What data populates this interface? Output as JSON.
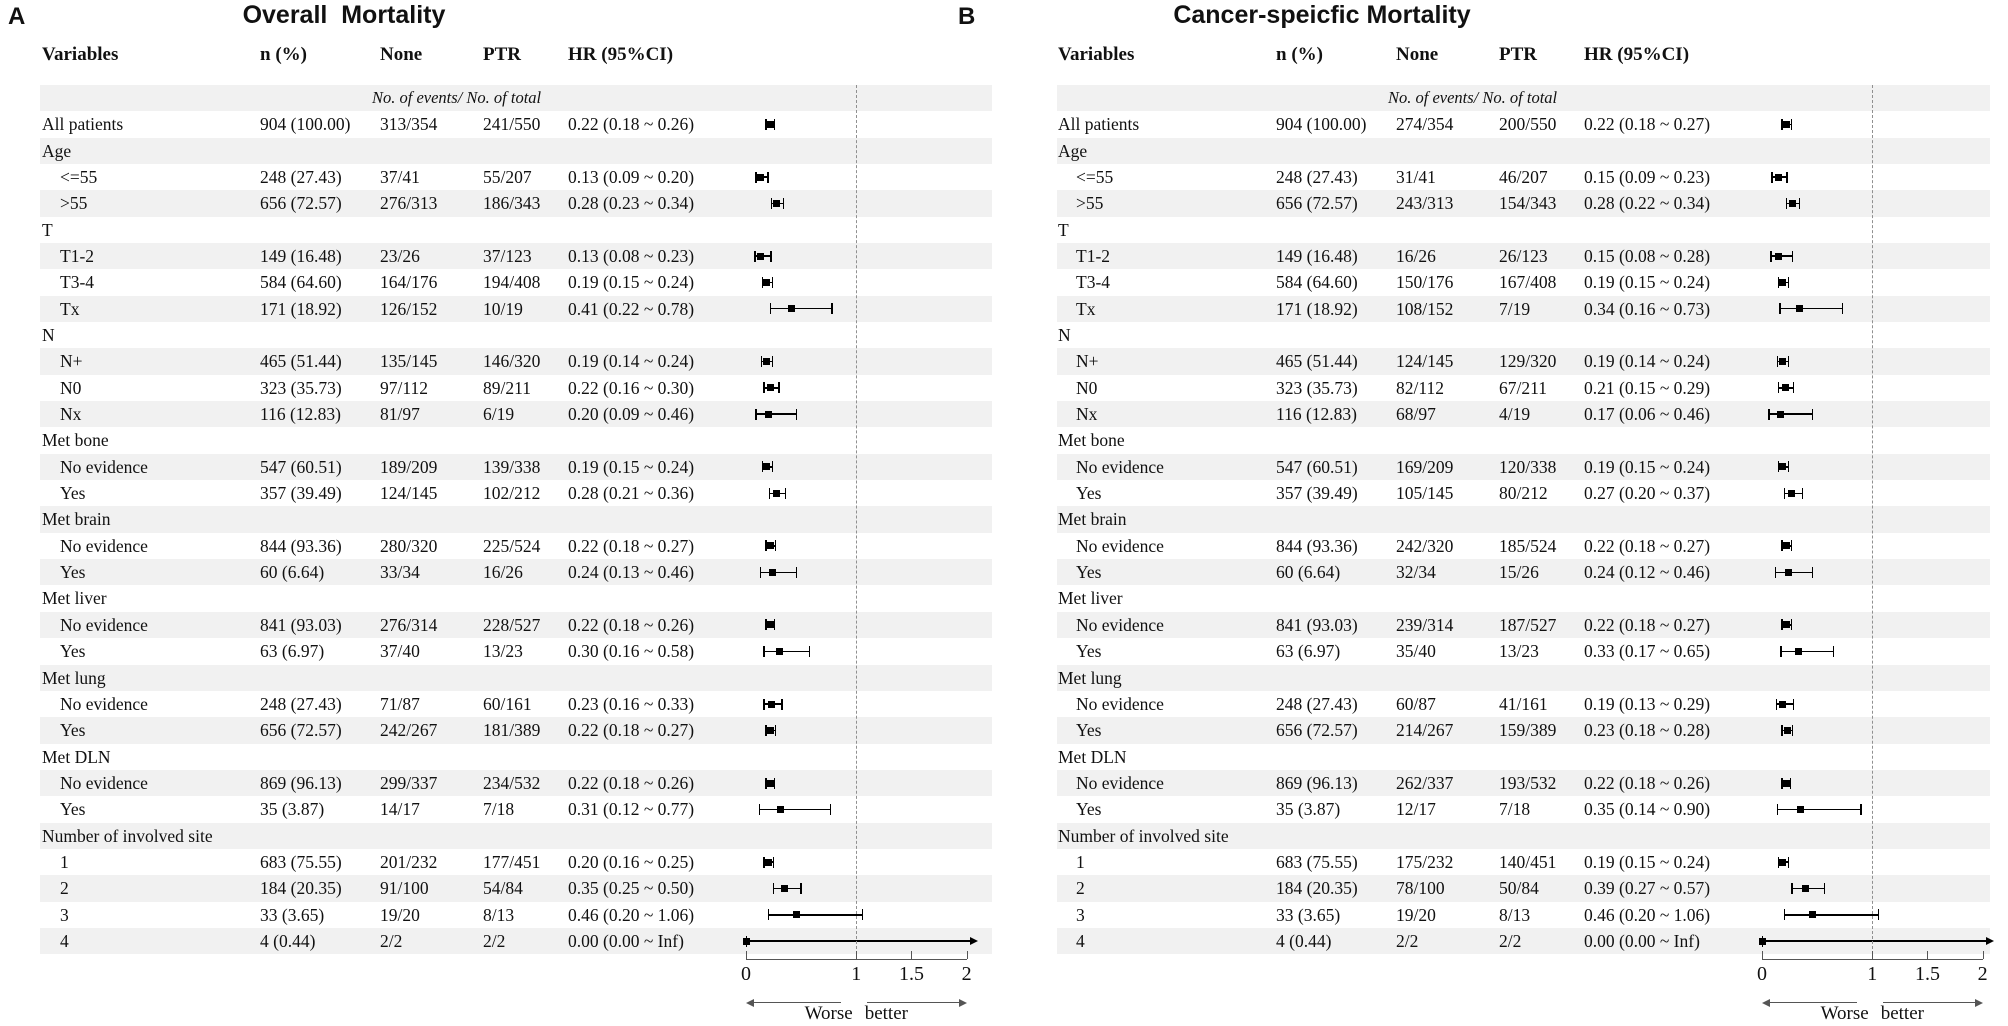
{
  "colors": {
    "band": "#f1f1f1",
    "marker": "#000000",
    "axis": "#555555",
    "refline": "#909090",
    "text": "#111111"
  },
  "chart_data": [
    {
      "type": "forest",
      "panel_label": "A",
      "title": "Overall  Mortality",
      "columns": {
        "variables": "Variables",
        "n": "n (%)",
        "none": "None",
        "ptr": "PTR",
        "hr": "HR (95%CI)"
      },
      "subheader": "No. of events/ No. of total",
      "axis": {
        "ticks": [
          0,
          1,
          1.5,
          2
        ],
        "tick_labels": [
          "0",
          "1",
          "1.5",
          "2"
        ],
        "xlim": [
          0,
          2
        ],
        "refline": 1,
        "left_label": "Worse",
        "right_label": "better"
      },
      "rows": [
        {
          "label": "All patients",
          "indent": false,
          "n": "904 (100.00)",
          "none": "313/354",
          "ptr": "241/550",
          "hr_text": "0.22 (0.18 ~ 0.26)",
          "hr": 0.22,
          "lo": 0.18,
          "hi": 0.26
        },
        {
          "label": "Age",
          "group": true
        },
        {
          "label": "<=55",
          "indent": true,
          "n": "248 (27.43)",
          "none": "37/41",
          "ptr": "55/207",
          "hr_text": "0.13 (0.09 ~ 0.20)",
          "hr": 0.13,
          "lo": 0.09,
          "hi": 0.2
        },
        {
          "label": ">55",
          "indent": true,
          "n": "656 (72.57)",
          "none": "276/313",
          "ptr": "186/343",
          "hr_text": "0.28 (0.23 ~ 0.34)",
          "hr": 0.28,
          "lo": 0.23,
          "hi": 0.34
        },
        {
          "label": "T",
          "group": true
        },
        {
          "label": "T1-2",
          "indent": true,
          "n": "149 (16.48)",
          "none": "23/26",
          "ptr": "37/123",
          "hr_text": "0.13 (0.08 ~ 0.23)",
          "hr": 0.13,
          "lo": 0.08,
          "hi": 0.23
        },
        {
          "label": "T3-4",
          "indent": true,
          "n": "584 (64.60)",
          "none": "164/176",
          "ptr": "194/408",
          "hr_text": "0.19 (0.15 ~ 0.24)",
          "hr": 0.19,
          "lo": 0.15,
          "hi": 0.24
        },
        {
          "label": "Tx",
          "indent": true,
          "n": "171 (18.92)",
          "none": "126/152",
          "ptr": "10/19",
          "hr_text": "0.41 (0.22 ~ 0.78)",
          "hr": 0.41,
          "lo": 0.22,
          "hi": 0.78
        },
        {
          "label": "N",
          "group": true
        },
        {
          "label": "N+",
          "indent": true,
          "n": "465 (51.44)",
          "none": "135/145",
          "ptr": "146/320",
          "hr_text": "0.19 (0.14 ~ 0.24)",
          "hr": 0.19,
          "lo": 0.14,
          "hi": 0.24
        },
        {
          "label": "N0",
          "indent": true,
          "n": "323 (35.73)",
          "none": "97/112",
          "ptr": "89/211",
          "hr_text": "0.22 (0.16 ~ 0.30)",
          "hr": 0.22,
          "lo": 0.16,
          "hi": 0.3
        },
        {
          "label": "Nx",
          "indent": true,
          "n": "116 (12.83)",
          "none": "81/97",
          "ptr": "6/19",
          "hr_text": "0.20 (0.09 ~ 0.46)",
          "hr": 0.2,
          "lo": 0.09,
          "hi": 0.46
        },
        {
          "label": "Met bone",
          "group": true
        },
        {
          "label": "No evidence",
          "indent": true,
          "n": "547 (60.51)",
          "none": "189/209",
          "ptr": "139/338",
          "hr_text": "0.19 (0.15 ~ 0.24)",
          "hr": 0.19,
          "lo": 0.15,
          "hi": 0.24
        },
        {
          "label": "Yes",
          "indent": true,
          "n": "357 (39.49)",
          "none": "124/145",
          "ptr": "102/212",
          "hr_text": "0.28 (0.21 ~ 0.36)",
          "hr": 0.28,
          "lo": 0.21,
          "hi": 0.36
        },
        {
          "label": "Met brain",
          "group": true
        },
        {
          "label": "No evidence",
          "indent": true,
          "n": "844 (93.36)",
          "none": "280/320",
          "ptr": "225/524",
          "hr_text": "0.22 (0.18 ~ 0.27)",
          "hr": 0.22,
          "lo": 0.18,
          "hi": 0.27
        },
        {
          "label": "Yes",
          "indent": true,
          "n": "60 (6.64)",
          "none": "33/34",
          "ptr": "16/26",
          "hr_text": "0.24 (0.13 ~ 0.46)",
          "hr": 0.24,
          "lo": 0.13,
          "hi": 0.46
        },
        {
          "label": "Met liver",
          "group": true
        },
        {
          "label": "No evidence",
          "indent": true,
          "n": "841 (93.03)",
          "none": "276/314",
          "ptr": "228/527",
          "hr_text": "0.22 (0.18 ~ 0.26)",
          "hr": 0.22,
          "lo": 0.18,
          "hi": 0.26
        },
        {
          "label": "Yes",
          "indent": true,
          "n": "63 (6.97)",
          "none": "37/40",
          "ptr": "13/23",
          "hr_text": "0.30 (0.16 ~ 0.58)",
          "hr": 0.3,
          "lo": 0.16,
          "hi": 0.58
        },
        {
          "label": "Met lung",
          "group": true
        },
        {
          "label": "No evidence",
          "indent": true,
          "n": "248 (27.43)",
          "none": "71/87",
          "ptr": "60/161",
          "hr_text": "0.23 (0.16 ~ 0.33)",
          "hr": 0.23,
          "lo": 0.16,
          "hi": 0.33
        },
        {
          "label": "Yes",
          "indent": true,
          "n": "656 (72.57)",
          "none": "242/267",
          "ptr": "181/389",
          "hr_text": "0.22 (0.18 ~ 0.27)",
          "hr": 0.22,
          "lo": 0.18,
          "hi": 0.27
        },
        {
          "label": "Met DLN",
          "group": true
        },
        {
          "label": "No evidence",
          "indent": true,
          "n": "869 (96.13)",
          "none": "299/337",
          "ptr": "234/532",
          "hr_text": "0.22 (0.18 ~ 0.26)",
          "hr": 0.22,
          "lo": 0.18,
          "hi": 0.26
        },
        {
          "label": "Yes",
          "indent": true,
          "n": "35 (3.87)",
          "none": "14/17",
          "ptr": "7/18",
          "hr_text": "0.31 (0.12 ~ 0.77)",
          "hr": 0.31,
          "lo": 0.12,
          "hi": 0.77
        },
        {
          "label": "Number of involved site",
          "group": true
        },
        {
          "label": "1",
          "indent": true,
          "n": "683 (75.55)",
          "none": "201/232",
          "ptr": "177/451",
          "hr_text": "0.20 (0.16 ~ 0.25)",
          "hr": 0.2,
          "lo": 0.16,
          "hi": 0.25
        },
        {
          "label": "2",
          "indent": true,
          "n": "184 (20.35)",
          "none": "91/100",
          "ptr": "54/84",
          "hr_text": "0.35 (0.25 ~ 0.50)",
          "hr": 0.35,
          "lo": 0.25,
          "hi": 0.5
        },
        {
          "label": "3",
          "indent": true,
          "n": "33 (3.65)",
          "none": "19/20",
          "ptr": "8/13",
          "hr_text": "0.46 (0.20 ~ 1.06)",
          "hr": 0.46,
          "lo": 0.2,
          "hi": 1.06
        },
        {
          "label": "4",
          "indent": true,
          "n": "4 (0.44)",
          "none": "2/2",
          "ptr": "2/2",
          "hr_text": "0.00 (0.00 ~ Inf)",
          "hr": 0.0,
          "lo": 0.0,
          "hi": "Inf",
          "inf": true
        }
      ]
    },
    {
      "type": "forest",
      "panel_label": "B",
      "title": "Cancer-speicfic Mortality",
      "columns": {
        "variables": "Variables",
        "n": "n (%)",
        "none": "None",
        "ptr": "PTR",
        "hr": "HR (95%CI)"
      },
      "subheader": "No. of events/ No. of total",
      "axis": {
        "ticks": [
          0,
          1,
          1.5,
          2
        ],
        "tick_labels": [
          "0",
          "1",
          "1.5",
          "2"
        ],
        "xlim": [
          0,
          2
        ],
        "refline": 1,
        "left_label": "Worse",
        "right_label": "better"
      },
      "rows": [
        {
          "label": "All patients",
          "indent": false,
          "n": "904 (100.00)",
          "none": "274/354",
          "ptr": "200/550",
          "hr_text": "0.22 (0.18 ~ 0.27)",
          "hr": 0.22,
          "lo": 0.18,
          "hi": 0.27
        },
        {
          "label": "Age",
          "group": true
        },
        {
          "label": "<=55",
          "indent": true,
          "n": "248 (27.43)",
          "none": "31/41",
          "ptr": "46/207",
          "hr_text": "0.15 (0.09 ~ 0.23)",
          "hr": 0.15,
          "lo": 0.09,
          "hi": 0.23
        },
        {
          "label": ">55",
          "indent": true,
          "n": "656 (72.57)",
          "none": "243/313",
          "ptr": "154/343",
          "hr_text": "0.28 (0.22 ~ 0.34)",
          "hr": 0.28,
          "lo": 0.22,
          "hi": 0.34
        },
        {
          "label": "T",
          "group": true
        },
        {
          "label": "T1-2",
          "indent": true,
          "n": "149 (16.48)",
          "none": "16/26",
          "ptr": "26/123",
          "hr_text": "0.15 (0.08 ~ 0.28)",
          "hr": 0.15,
          "lo": 0.08,
          "hi": 0.28
        },
        {
          "label": "T3-4",
          "indent": true,
          "n": "584 (64.60)",
          "none": "150/176",
          "ptr": "167/408",
          "hr_text": "0.19 (0.15 ~ 0.24)",
          "hr": 0.19,
          "lo": 0.15,
          "hi": 0.24
        },
        {
          "label": "Tx",
          "indent": true,
          "n": "171 (18.92)",
          "none": "108/152",
          "ptr": "7/19",
          "hr_text": "0.34 (0.16 ~ 0.73)",
          "hr": 0.34,
          "lo": 0.16,
          "hi": 0.73
        },
        {
          "label": "N",
          "group": true
        },
        {
          "label": "N+",
          "indent": true,
          "n": "465 (51.44)",
          "none": "124/145",
          "ptr": "129/320",
          "hr_text": "0.19 (0.14 ~ 0.24)",
          "hr": 0.19,
          "lo": 0.14,
          "hi": 0.24
        },
        {
          "label": "N0",
          "indent": true,
          "n": "323 (35.73)",
          "none": "82/112",
          "ptr": "67/211",
          "hr_text": "0.21 (0.15 ~ 0.29)",
          "hr": 0.21,
          "lo": 0.15,
          "hi": 0.29
        },
        {
          "label": "Nx",
          "indent": true,
          "n": "116 (12.83)",
          "none": "68/97",
          "ptr": "4/19",
          "hr_text": "0.17 (0.06 ~ 0.46)",
          "hr": 0.17,
          "lo": 0.06,
          "hi": 0.46
        },
        {
          "label": "Met bone",
          "group": true
        },
        {
          "label": "No evidence",
          "indent": true,
          "n": "547 (60.51)",
          "none": "169/209",
          "ptr": "120/338",
          "hr_text": "0.19 (0.15 ~ 0.24)",
          "hr": 0.19,
          "lo": 0.15,
          "hi": 0.24
        },
        {
          "label": "Yes",
          "indent": true,
          "n": "357 (39.49)",
          "none": "105/145",
          "ptr": "80/212",
          "hr_text": "0.27 (0.20 ~ 0.37)",
          "hr": 0.27,
          "lo": 0.2,
          "hi": 0.37
        },
        {
          "label": "Met brain",
          "group": true
        },
        {
          "label": "No evidence",
          "indent": true,
          "n": "844 (93.36)",
          "none": "242/320",
          "ptr": "185/524",
          "hr_text": "0.22 (0.18 ~ 0.27)",
          "hr": 0.22,
          "lo": 0.18,
          "hi": 0.27
        },
        {
          "label": "Yes",
          "indent": true,
          "n": "60 (6.64)",
          "none": "32/34",
          "ptr": "15/26",
          "hr_text": "0.24 (0.12 ~ 0.46)",
          "hr": 0.24,
          "lo": 0.12,
          "hi": 0.46
        },
        {
          "label": "Met liver",
          "group": true
        },
        {
          "label": "No evidence",
          "indent": true,
          "n": "841 (93.03)",
          "none": "239/314",
          "ptr": "187/527",
          "hr_text": "0.22 (0.18 ~ 0.27)",
          "hr": 0.22,
          "lo": 0.18,
          "hi": 0.27
        },
        {
          "label": "Yes",
          "indent": true,
          "n": "63 (6.97)",
          "none": "35/40",
          "ptr": "13/23",
          "hr_text": "0.33 (0.17 ~ 0.65)",
          "hr": 0.33,
          "lo": 0.17,
          "hi": 0.65
        },
        {
          "label": "Met lung",
          "group": true
        },
        {
          "label": "No evidence",
          "indent": true,
          "n": "248 (27.43)",
          "none": "60/87",
          "ptr": "41/161",
          "hr_text": "0.19 (0.13 ~ 0.29)",
          "hr": 0.19,
          "lo": 0.13,
          "hi": 0.29
        },
        {
          "label": "Yes",
          "indent": true,
          "n": "656 (72.57)",
          "none": "214/267",
          "ptr": "159/389",
          "hr_text": "0.23 (0.18 ~ 0.28)",
          "hr": 0.23,
          "lo": 0.18,
          "hi": 0.28
        },
        {
          "label": "Met DLN",
          "group": true
        },
        {
          "label": "No evidence",
          "indent": true,
          "n": "869 (96.13)",
          "none": "262/337",
          "ptr": "193/532",
          "hr_text": "0.22 (0.18 ~ 0.26)",
          "hr": 0.22,
          "lo": 0.18,
          "hi": 0.26
        },
        {
          "label": "Yes",
          "indent": true,
          "n": "35 (3.87)",
          "none": "12/17",
          "ptr": "7/18",
          "hr_text": "0.35 (0.14 ~ 0.90)",
          "hr": 0.35,
          "lo": 0.14,
          "hi": 0.9
        },
        {
          "label": "Number of involved site",
          "group": true
        },
        {
          "label": "1",
          "indent": true,
          "n": "683 (75.55)",
          "none": "175/232",
          "ptr": "140/451",
          "hr_text": "0.19 (0.15 ~ 0.24)",
          "hr": 0.19,
          "lo": 0.15,
          "hi": 0.24
        },
        {
          "label": "2",
          "indent": true,
          "n": "184 (20.35)",
          "none": "78/100",
          "ptr": "50/84",
          "hr_text": "0.39 (0.27 ~ 0.57)",
          "hr": 0.39,
          "lo": 0.27,
          "hi": 0.57
        },
        {
          "label": "3",
          "indent": true,
          "n": "33 (3.65)",
          "none": "19/20",
          "ptr": "8/13",
          "hr_text": "0.46 (0.20 ~ 1.06)",
          "hr": 0.46,
          "lo": 0.2,
          "hi": 1.06
        },
        {
          "label": "4",
          "indent": true,
          "n": "4 (0.44)",
          "none": "2/2",
          "ptr": "2/2",
          "hr_text": "0.00 (0.00 ~ Inf)",
          "hr": 0.0,
          "lo": 0.0,
          "hi": "Inf",
          "inf": true
        }
      ]
    }
  ]
}
